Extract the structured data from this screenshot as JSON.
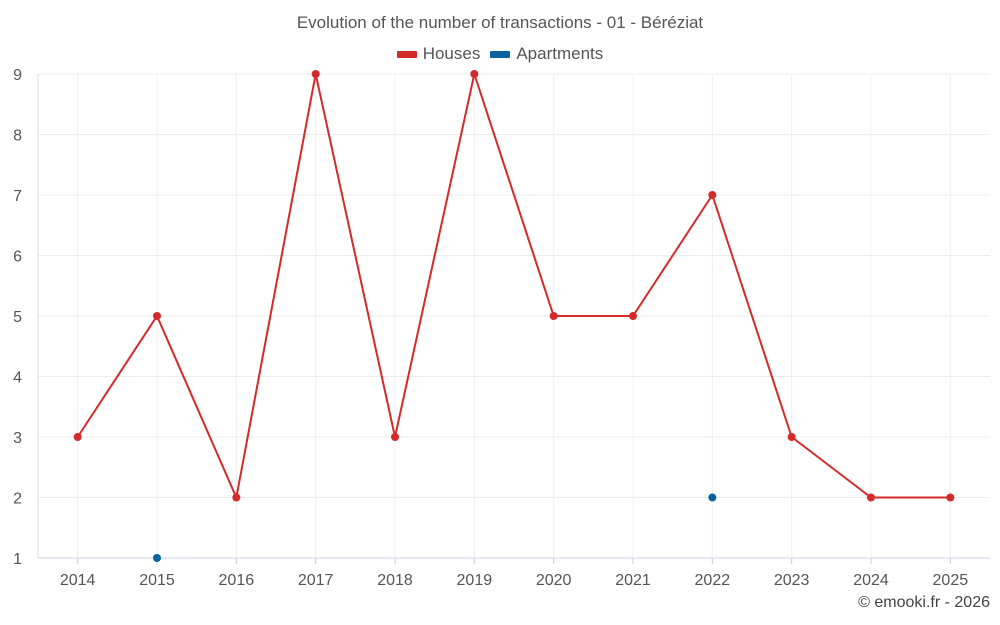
{
  "chart_data": {
    "type": "line",
    "title": "Evolution of the number of transactions - 01 - Béréziat",
    "categories": [
      "2014",
      "2015",
      "2016",
      "2017",
      "2018",
      "2019",
      "2020",
      "2021",
      "2022",
      "2023",
      "2024",
      "2025"
    ],
    "series": [
      {
        "name": "Houses",
        "color": "#d42a2a",
        "values": [
          3,
          5,
          2,
          9,
          3,
          9,
          5,
          5,
          7,
          3,
          2,
          2
        ]
      },
      {
        "name": "Apartments",
        "color": "#0b62a0",
        "values": [
          null,
          1,
          null,
          null,
          null,
          null,
          null,
          null,
          2,
          null,
          null,
          null
        ]
      }
    ],
    "ylim": [
      1,
      9
    ],
    "yticks": [
      1,
      2,
      3,
      4,
      5,
      6,
      7,
      8,
      9
    ],
    "xlabel": "",
    "ylabel": "",
    "grid": true,
    "legend_position": "top-center"
  },
  "credit": "© emooki.fr - 2026"
}
